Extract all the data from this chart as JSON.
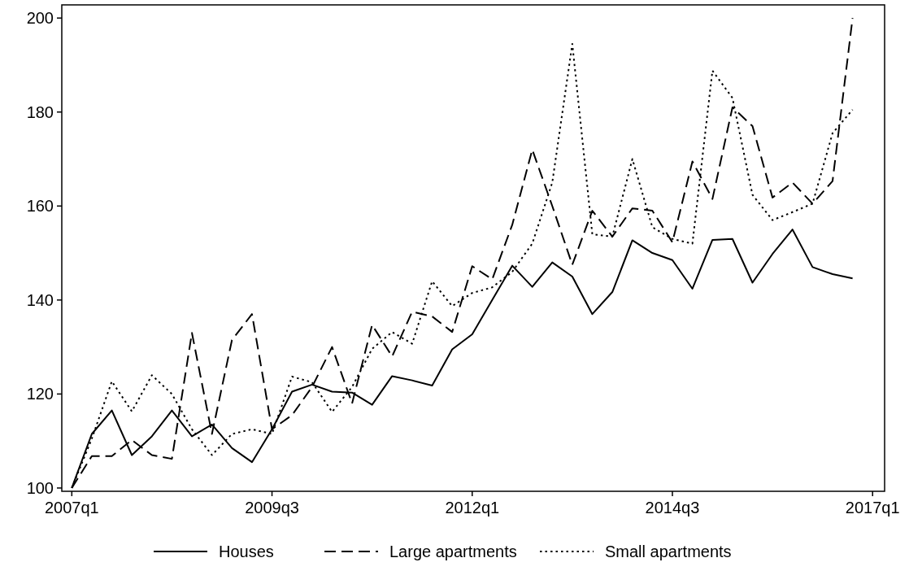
{
  "chart_data": {
    "type": "line",
    "categories": [
      "2007q1",
      null,
      null,
      null,
      null,
      null,
      null,
      null,
      null,
      null,
      "2009q3",
      null,
      null,
      null,
      null,
      null,
      null,
      null,
      null,
      null,
      "2012q1",
      null,
      null,
      null,
      null,
      null,
      null,
      null,
      null,
      null,
      "2014q3",
      null,
      null,
      null,
      null,
      null,
      null,
      null,
      null,
      null,
      "2017q1"
    ],
    "series": [
      {
        "name": "Houses",
        "color": "#000000",
        "line_style": "solid",
        "values": [
          100,
          111.5,
          116.5,
          107,
          111,
          116.5,
          111,
          113.5,
          108.5,
          105.5,
          112.5,
          120.5,
          122,
          120.5,
          120.3,
          117.7,
          123.8,
          122.9,
          121.8,
          129.5,
          132.7,
          140,
          147.3,
          142.8,
          148,
          145,
          137,
          141.7,
          152.7,
          150,
          148.5,
          142.4,
          152.8,
          153,
          143.7,
          149.8,
          155,
          147,
          145.5,
          144.6,
          null
        ]
      },
      {
        "name": "Large apartments",
        "color": "#000000",
        "line_style": "dashed",
        "values": [
          100,
          106.8,
          106.8,
          110.2,
          107,
          106.2,
          133,
          111.5,
          131.5,
          137,
          112.5,
          115.5,
          121.5,
          130,
          118,
          134.7,
          128,
          137.5,
          136.5,
          133.2,
          147.2,
          144.4,
          156,
          172,
          160,
          147.5,
          159,
          153.5,
          159.5,
          159,
          152.3,
          169.5,
          161.5,
          181,
          177,
          161.8,
          165,
          160.5,
          165.3,
          200,
          null
        ]
      },
      {
        "name": "Small apartments",
        "color": "#000000",
        "line_style": "dotted",
        "values": [
          100,
          110.5,
          122.7,
          116.3,
          124,
          120,
          112.5,
          107,
          111.5,
          112.5,
          111.5,
          123.7,
          122.5,
          116.2,
          121.5,
          129.6,
          133.2,
          130.7,
          144,
          138.7,
          141.5,
          142.7,
          146,
          152,
          165,
          194.5,
          154,
          153.5,
          170,
          155.5,
          153,
          152,
          188.8,
          183,
          162.4,
          157,
          158.7,
          160.5,
          175.5,
          180.5,
          null
        ]
      }
    ],
    "ylim": [
      99.3,
      202.8
    ],
    "yticks": [
      100,
      120,
      140,
      160,
      180,
      200
    ],
    "grid": false,
    "legend": "bottom"
  }
}
